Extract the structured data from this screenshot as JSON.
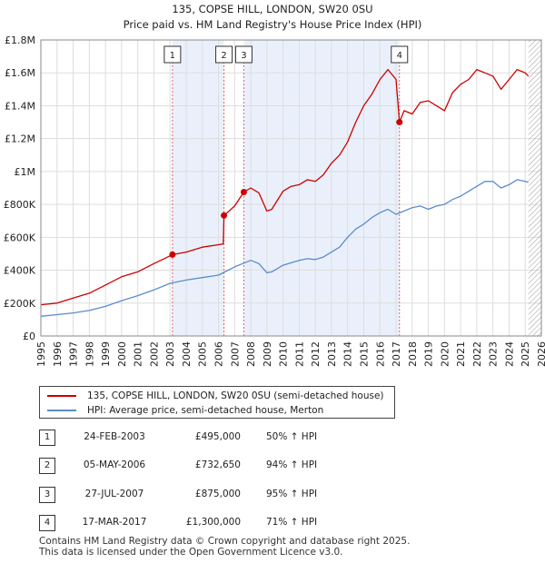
{
  "chart_data": {
    "type": "line",
    "title": "135, COPSE HILL, LONDON, SW20 0SU",
    "subtitle": "Price paid vs. HM Land Registry's House Price Index (HPI)",
    "xlim": [
      1995,
      2026
    ],
    "ylim": [
      0,
      1800000
    ],
    "x_ticks": [
      "1995",
      "1996",
      "1997",
      "1998",
      "1999",
      "2000",
      "2001",
      "2002",
      "2003",
      "2004",
      "2005",
      "2006",
      "2007",
      "2008",
      "2009",
      "2010",
      "2011",
      "2012",
      "2013",
      "2014",
      "2015",
      "2016",
      "2017",
      "2018",
      "2019",
      "2020",
      "2021",
      "2022",
      "2023",
      "2024",
      "2025",
      "2026"
    ],
    "y_ticks": [
      {
        "value": 0,
        "label": "£0"
      },
      {
        "value": 200000,
        "label": "£200K"
      },
      {
        "value": 400000,
        "label": "£400K"
      },
      {
        "value": 600000,
        "label": "£600K"
      },
      {
        "value": 800000,
        "label": "£800K"
      },
      {
        "value": 1000000,
        "label": "£1M"
      },
      {
        "value": 1200000,
        "label": "£1.2M"
      },
      {
        "value": 1400000,
        "label": "£1.4M"
      },
      {
        "value": 1600000,
        "label": "£1.6M"
      },
      {
        "value": 1800000,
        "label": "£1.8M"
      }
    ],
    "shaded_ranges": [
      [
        2003.15,
        2006.34
      ],
      [
        2007.57,
        2017.21
      ]
    ],
    "future_start": 2025.2,
    "series": [
      {
        "name": "135, COPSE HILL, LONDON, SW20 0SU (semi-detached house)",
        "color": "#cc0000",
        "x": [
          1995.0,
          1996.0,
          1997.0,
          1998.0,
          1999.0,
          2000.0,
          2001.0,
          2002.0,
          2003.15,
          2004.0,
          2005.0,
          2006.0,
          2006.3,
          2006.34,
          2007.0,
          2007.57,
          2008.0,
          2008.5,
          2009.0,
          2009.3,
          2010.0,
          2010.5,
          2011.0,
          2011.5,
          2012.0,
          2012.5,
          2013.0,
          2013.5,
          2014.0,
          2014.5,
          2015.0,
          2015.5,
          2016.0,
          2016.5,
          2017.0,
          2017.21,
          2017.5,
          2018.0,
          2018.5,
          2019.0,
          2019.5,
          2020.0,
          2020.5,
          2021.0,
          2021.5,
          2022.0,
          2022.5,
          2023.0,
          2023.5,
          2024.0,
          2024.5,
          2025.0,
          2025.2
        ],
        "values": [
          190000,
          200000,
          230000,
          260000,
          310000,
          360000,
          390000,
          440000,
          495000,
          510000,
          540000,
          555000,
          560000,
          732650,
          790000,
          875000,
          900000,
          870000,
          760000,
          770000,
          880000,
          910000,
          920000,
          950000,
          940000,
          980000,
          1050000,
          1100000,
          1180000,
          1300000,
          1400000,
          1470000,
          1560000,
          1620000,
          1560000,
          1300000,
          1370000,
          1350000,
          1420000,
          1430000,
          1400000,
          1370000,
          1480000,
          1530000,
          1560000,
          1620000,
          1600000,
          1580000,
          1500000,
          1560000,
          1620000,
          1600000,
          1580000
        ]
      },
      {
        "name": "HPI: Average price, semi-detached house, Merton",
        "color": "#5b8ccc",
        "x": [
          1995.0,
          1996.0,
          1997.0,
          1998.0,
          1999.0,
          2000.0,
          2001.0,
          2002.0,
          2003.0,
          2004.0,
          2005.0,
          2006.0,
          2007.0,
          2008.0,
          2008.5,
          2009.0,
          2009.3,
          2010.0,
          2010.5,
          2011.0,
          2011.5,
          2012.0,
          2012.5,
          2013.0,
          2013.5,
          2014.0,
          2014.5,
          2015.0,
          2015.5,
          2016.0,
          2016.5,
          2017.0,
          2017.5,
          2018.0,
          2018.5,
          2019.0,
          2019.5,
          2020.0,
          2020.5,
          2021.0,
          2021.5,
          2022.0,
          2022.5,
          2023.0,
          2023.5,
          2024.0,
          2024.5,
          2025.0,
          2025.2
        ],
        "values": [
          120000,
          130000,
          140000,
          155000,
          180000,
          215000,
          245000,
          280000,
          320000,
          340000,
          355000,
          370000,
          420000,
          460000,
          440000,
          385000,
          390000,
          430000,
          445000,
          460000,
          470000,
          465000,
          480000,
          510000,
          540000,
          600000,
          650000,
          680000,
          720000,
          750000,
          770000,
          740000,
          760000,
          780000,
          790000,
          770000,
          790000,
          800000,
          830000,
          850000,
          880000,
          910000,
          940000,
          940000,
          900000,
          920000,
          950000,
          940000,
          935000
        ]
      }
    ],
    "sales": [
      {
        "id": "1",
        "x": 2003.15,
        "value": 495000
      },
      {
        "id": "2",
        "x": 2006.34,
        "value": 732650
      },
      {
        "id": "3",
        "x": 2007.57,
        "value": 875000
      },
      {
        "id": "4",
        "x": 2017.21,
        "value": 1300000
      }
    ]
  },
  "legend": {
    "property_label": "135, COPSE HILL, LONDON, SW20 0SU (semi-detached house)",
    "hpi_label": "HPI: Average price, semi-detached house, Merton"
  },
  "sales_table": [
    {
      "num": "1",
      "date": "24-FEB-2003",
      "price": "£495,000",
      "hpi": "50% ↑ HPI"
    },
    {
      "num": "2",
      "date": "05-MAY-2006",
      "price": "£732,650",
      "hpi": "94% ↑ HPI"
    },
    {
      "num": "3",
      "date": "27-JUL-2007",
      "price": "£875,000",
      "hpi": "95% ↑ HPI"
    },
    {
      "num": "4",
      "date": "17-MAR-2017",
      "price": "£1,300,000",
      "hpi": "71% ↑ HPI"
    }
  ],
  "footer": {
    "line1": "Contains HM Land Registry data © Crown copyright and database right 2025.",
    "line2": "This data is licensed under the Open Government Licence v3.0."
  }
}
